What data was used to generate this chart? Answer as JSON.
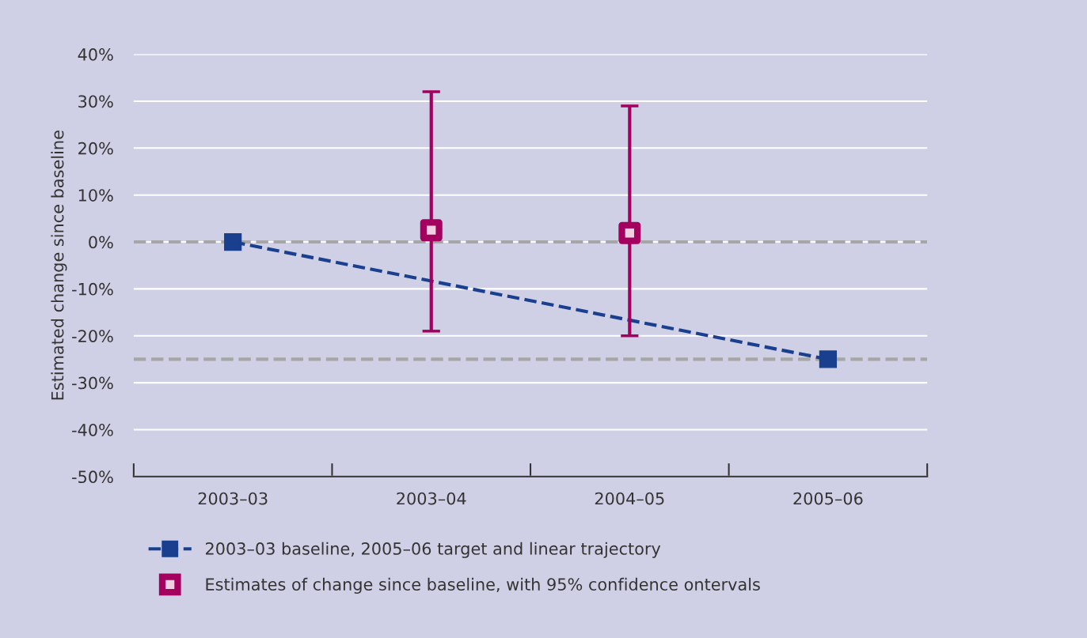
{
  "chart_data": {
    "type": "line",
    "ylabel": "Estimated change since baseline",
    "categories": [
      "2003–03",
      "2003–04",
      "2004–05",
      "2005–06"
    ],
    "series": [
      {
        "name": "2003–03 baseline, 2005–06 target and linear trajectory",
        "color": "#1a3f8f",
        "values": [
          0,
          null,
          null,
          -25
        ],
        "marker": "square",
        "line_style": "dashed"
      },
      {
        "name": "Estimates of change since baseline, with 95% confidence ontervals",
        "type": "scatter",
        "color": "#a3005f",
        "values": [
          null,
          2.5,
          1.9,
          null
        ],
        "marker": "square",
        "errors": [
          null,
          [
            -19,
            32
          ],
          [
            -20,
            29
          ],
          null
        ]
      }
    ],
    "ylim": [
      -50,
      40
    ],
    "yticks": [
      {
        "value": -50,
        "label": "-50%"
      },
      {
        "value": -40,
        "label": "-40%"
      },
      {
        "value": -30,
        "label": "-30%"
      },
      {
        "value": -20,
        "label": "-20%"
      },
      {
        "value": -10,
        "label": "-10%"
      },
      {
        "value": 0,
        "label": "0%"
      },
      {
        "value": 10,
        "label": "10%"
      },
      {
        "value": 20,
        "label": "20%"
      },
      {
        "value": 30,
        "label": "30%"
      },
      {
        "value": 40,
        "label": "40%"
      }
    ],
    "ref_lines": [
      {
        "axis": "y",
        "value": 0,
        "color": "#a6a6a6",
        "line_style": "dashed"
      },
      {
        "axis": "y",
        "value": -25,
        "color": "#a6a6a6",
        "line_style": "dashed"
      }
    ],
    "grid": "y",
    "legend": "bottom"
  }
}
